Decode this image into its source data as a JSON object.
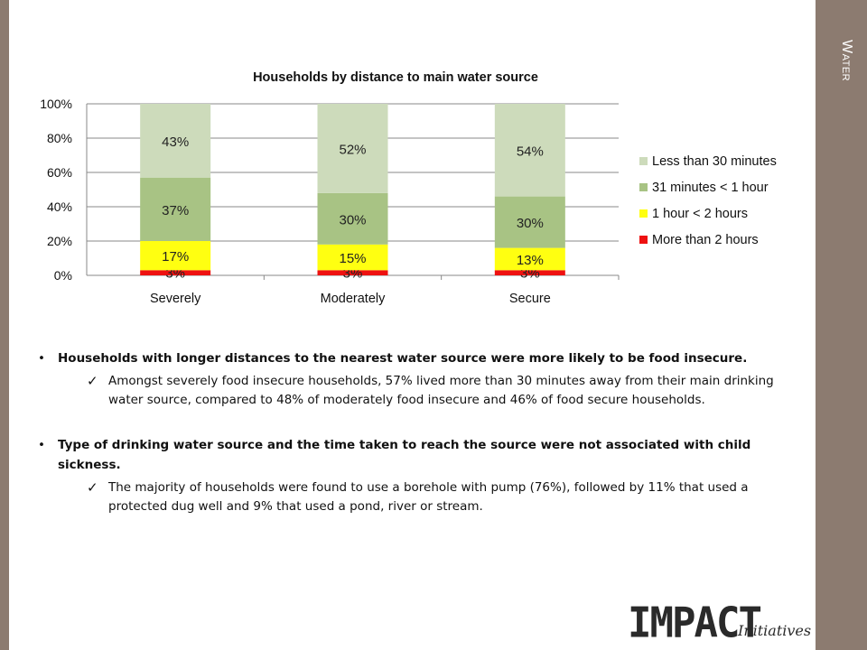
{
  "section_title": "Water",
  "chart_data": {
    "type": "bar",
    "stacked": true,
    "title": "Households by distance to main water source",
    "categories": [
      "Severely",
      "Moderately",
      "Secure"
    ],
    "yticks": [
      "0%",
      "20%",
      "40%",
      "60%",
      "80%",
      "100%"
    ],
    "ylim": [
      0,
      100
    ],
    "series": [
      {
        "name": "More than 2 hours",
        "color": "#ee1111",
        "values": [
          3,
          3,
          3
        ],
        "labels": [
          "3%",
          "3%",
          "3%"
        ]
      },
      {
        "name": "1 hour  < 2 hours",
        "color": "#ffff11",
        "values": [
          17,
          15,
          13
        ],
        "labels": [
          "17%",
          "15%",
          "13%"
        ]
      },
      {
        "name": "31 minutes < 1 hour",
        "color": "#a8c384",
        "values": [
          37,
          30,
          30
        ],
        "labels": [
          "37%",
          "30%",
          "30%"
        ]
      },
      {
        "name": "Less than 30 minutes",
        "color": "#cddbbb",
        "values": [
          43,
          52,
          54
        ],
        "labels": [
          "43%",
          "52%",
          "54%"
        ]
      }
    ],
    "legend_order": [
      3,
      2,
      1,
      0
    ],
    "legend": "right",
    "grid": true
  },
  "bullets": [
    {
      "text": "Households with longer distances to the nearest water source were more likely to be food insecure.",
      "sub": "Amongst severely food insecure households, 57% lived more than 30 minutes away from their main drinking water source, compared to 48% of moderately food insecure and 46% of food secure households."
    },
    {
      "text": "Type of drinking water source and the time taken to reach the source were not associated with child sickness.",
      "sub": "The majority of households were found to use a borehole with pump (76%), followed by 11% that used a protected dug well and 9% that used a pond, river or stream."
    }
  ],
  "logo": {
    "main": "IMPACT",
    "sub": "Initiatives"
  }
}
